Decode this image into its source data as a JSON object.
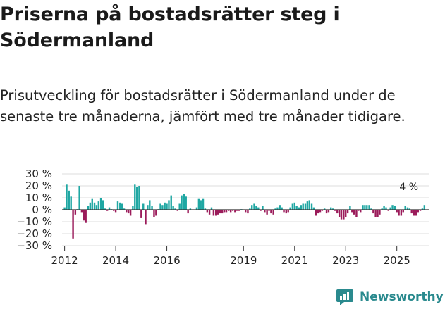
{
  "title": "Priserna på bostadsrätter steg i Södermanland",
  "subtitle": "Prisutveckling för bostadsrätter i Södermanland under de senaste tre månaderna, jämfört med tre månader tidigare.",
  "brand": {
    "name": "Newsworthy",
    "color": "#2a8a8e"
  },
  "colors": {
    "positive": "#1fa7a3",
    "negative": "#9b1b5a",
    "grid": "#dddddd",
    "zero": "#333333"
  },
  "chart_data": {
    "type": "bar",
    "title": "Priserna på bostadsrätter steg i Södermanland",
    "xlabel": "",
    "ylabel": "",
    "ylim": [
      -30,
      30
    ],
    "y_ticks": [
      30,
      20,
      10,
      0,
      -10,
      -20,
      -30
    ],
    "y_tick_labels": [
      "30 %",
      "20 %",
      "10 %",
      "0 %",
      "−10 %",
      "−20 %",
      "−30 %"
    ],
    "x_ticks": [
      "2012",
      "2014",
      "2016",
      "2019",
      "2021",
      "2023",
      "2025"
    ],
    "x_start": 2011.9,
    "x_end": 2026.25,
    "annotation": {
      "text": "4 %",
      "x": 2025.8,
      "value": 4
    },
    "series": [
      {
        "name": "Prisutveckling",
        "unit": "%",
        "points": [
          [
            2012.0,
            2
          ],
          [
            2012.08,
            21
          ],
          [
            2012.17,
            16
          ],
          [
            2012.25,
            11
          ],
          [
            2012.33,
            -24
          ],
          [
            2012.42,
            -4
          ],
          [
            2012.5,
            0.5
          ],
          [
            2012.58,
            20
          ],
          [
            2012.67,
            -2
          ],
          [
            2012.75,
            -9
          ],
          [
            2012.83,
            -11
          ],
          [
            2012.92,
            3
          ],
          [
            2013.0,
            6
          ],
          [
            2013.08,
            9
          ],
          [
            2013.17,
            6
          ],
          [
            2013.25,
            4
          ],
          [
            2013.33,
            7
          ],
          [
            2013.42,
            10
          ],
          [
            2013.5,
            8
          ],
          [
            2013.58,
            1
          ],
          [
            2013.67,
            -1
          ],
          [
            2013.75,
            2
          ],
          [
            2013.83,
            0.5
          ],
          [
            2013.92,
            -1
          ],
          [
            2014.0,
            -2
          ],
          [
            2014.08,
            7
          ],
          [
            2014.17,
            6
          ],
          [
            2014.25,
            5
          ],
          [
            2014.33,
            1
          ],
          [
            2014.42,
            -2
          ],
          [
            2014.5,
            -3
          ],
          [
            2014.58,
            -5
          ],
          [
            2014.67,
            3
          ],
          [
            2014.75,
            21
          ],
          [
            2014.83,
            19
          ],
          [
            2014.92,
            20
          ],
          [
            2015.0,
            -7
          ],
          [
            2015.08,
            5
          ],
          [
            2015.17,
            -12
          ],
          [
            2015.25,
            4
          ],
          [
            2015.33,
            8
          ],
          [
            2015.42,
            3
          ],
          [
            2015.5,
            -6
          ],
          [
            2015.58,
            -5
          ],
          [
            2015.67,
            0.5
          ],
          [
            2015.75,
            5
          ],
          [
            2015.83,
            4
          ],
          [
            2015.92,
            6
          ],
          [
            2016.0,
            5
          ],
          [
            2016.08,
            8
          ],
          [
            2016.17,
            12
          ],
          [
            2016.25,
            3
          ],
          [
            2016.33,
            1
          ],
          [
            2016.42,
            -1
          ],
          [
            2016.5,
            5
          ],
          [
            2016.58,
            12
          ],
          [
            2016.67,
            13
          ],
          [
            2016.75,
            11
          ],
          [
            2016.83,
            -3
          ],
          [
            2016.92,
            1
          ],
          [
            2017.17,
            2
          ],
          [
            2017.25,
            9
          ],
          [
            2017.33,
            8
          ],
          [
            2017.42,
            9
          ],
          [
            2017.5,
            1
          ],
          [
            2017.58,
            -2
          ],
          [
            2017.67,
            -4
          ],
          [
            2017.75,
            2
          ],
          [
            2017.83,
            -5
          ],
          [
            2017.92,
            -5
          ],
          [
            2018.0,
            -4
          ],
          [
            2018.08,
            -3
          ],
          [
            2018.17,
            -3
          ],
          [
            2018.25,
            -2
          ],
          [
            2018.33,
            -2
          ],
          [
            2018.42,
            -1
          ],
          [
            2018.5,
            -2
          ],
          [
            2018.58,
            -1
          ],
          [
            2018.67,
            -2
          ],
          [
            2018.75,
            -1
          ],
          [
            2018.83,
            -1
          ],
          [
            2018.92,
            0.5
          ],
          [
            2019.08,
            -2
          ],
          [
            2019.17,
            -3
          ],
          [
            2019.25,
            1
          ],
          [
            2019.33,
            4
          ],
          [
            2019.42,
            5
          ],
          [
            2019.5,
            3
          ],
          [
            2019.58,
            2
          ],
          [
            2019.67,
            -1
          ],
          [
            2019.75,
            3
          ],
          [
            2019.83,
            -2
          ],
          [
            2019.92,
            -4
          ],
          [
            2020.0,
            -1
          ],
          [
            2020.08,
            -3
          ],
          [
            2020.17,
            -4
          ],
          [
            2020.25,
            1
          ],
          [
            2020.33,
            2
          ],
          [
            2020.42,
            4
          ],
          [
            2020.5,
            2
          ],
          [
            2020.58,
            -2
          ],
          [
            2020.67,
            -3
          ],
          [
            2020.75,
            -2
          ],
          [
            2020.83,
            2
          ],
          [
            2020.92,
            5
          ],
          [
            2021.0,
            6
          ],
          [
            2021.08,
            3
          ],
          [
            2021.17,
            2
          ],
          [
            2021.25,
            4
          ],
          [
            2021.33,
            5
          ],
          [
            2021.42,
            5
          ],
          [
            2021.5,
            7
          ],
          [
            2021.58,
            8
          ],
          [
            2021.67,
            5
          ],
          [
            2021.75,
            2
          ],
          [
            2021.83,
            -5
          ],
          [
            2021.92,
            -3
          ],
          [
            2022.0,
            -2
          ],
          [
            2022.08,
            -1
          ],
          [
            2022.17,
            1
          ],
          [
            2022.25,
            -3
          ],
          [
            2022.33,
            -2
          ],
          [
            2022.42,
            2
          ],
          [
            2022.5,
            1
          ],
          [
            2022.58,
            -1
          ],
          [
            2022.67,
            -3
          ],
          [
            2022.75,
            -6
          ],
          [
            2022.83,
            -8
          ],
          [
            2022.92,
            -8
          ],
          [
            2023.0,
            -6
          ],
          [
            2023.08,
            -3
          ],
          [
            2023.17,
            3
          ],
          [
            2023.25,
            -2
          ],
          [
            2023.33,
            -4
          ],
          [
            2023.42,
            -6
          ],
          [
            2023.5,
            -1
          ],
          [
            2023.58,
            -2
          ],
          [
            2023.67,
            4
          ],
          [
            2023.75,
            4
          ],
          [
            2023.83,
            4
          ],
          [
            2023.92,
            4
          ],
          [
            2024.0,
            1
          ],
          [
            2024.08,
            -3
          ],
          [
            2024.17,
            -6
          ],
          [
            2024.25,
            -6
          ],
          [
            2024.33,
            -4
          ],
          [
            2024.42,
            1
          ],
          [
            2024.5,
            3
          ],
          [
            2024.58,
            2
          ],
          [
            2024.67,
            -1
          ],
          [
            2024.75,
            2
          ],
          [
            2024.83,
            4
          ],
          [
            2024.92,
            3
          ],
          [
            2025.0,
            -2
          ],
          [
            2025.08,
            -5
          ],
          [
            2025.17,
            -5
          ],
          [
            2025.25,
            -2
          ],
          [
            2025.33,
            3
          ],
          [
            2025.42,
            2
          ],
          [
            2025.5,
            1
          ],
          [
            2025.58,
            -3
          ],
          [
            2025.67,
            -5
          ],
          [
            2025.75,
            -5
          ],
          [
            2025.83,
            -2
          ],
          [
            2025.92,
            -1
          ],
          [
            2026.0,
            1
          ],
          [
            2026.08,
            4
          ]
        ]
      }
    ]
  }
}
